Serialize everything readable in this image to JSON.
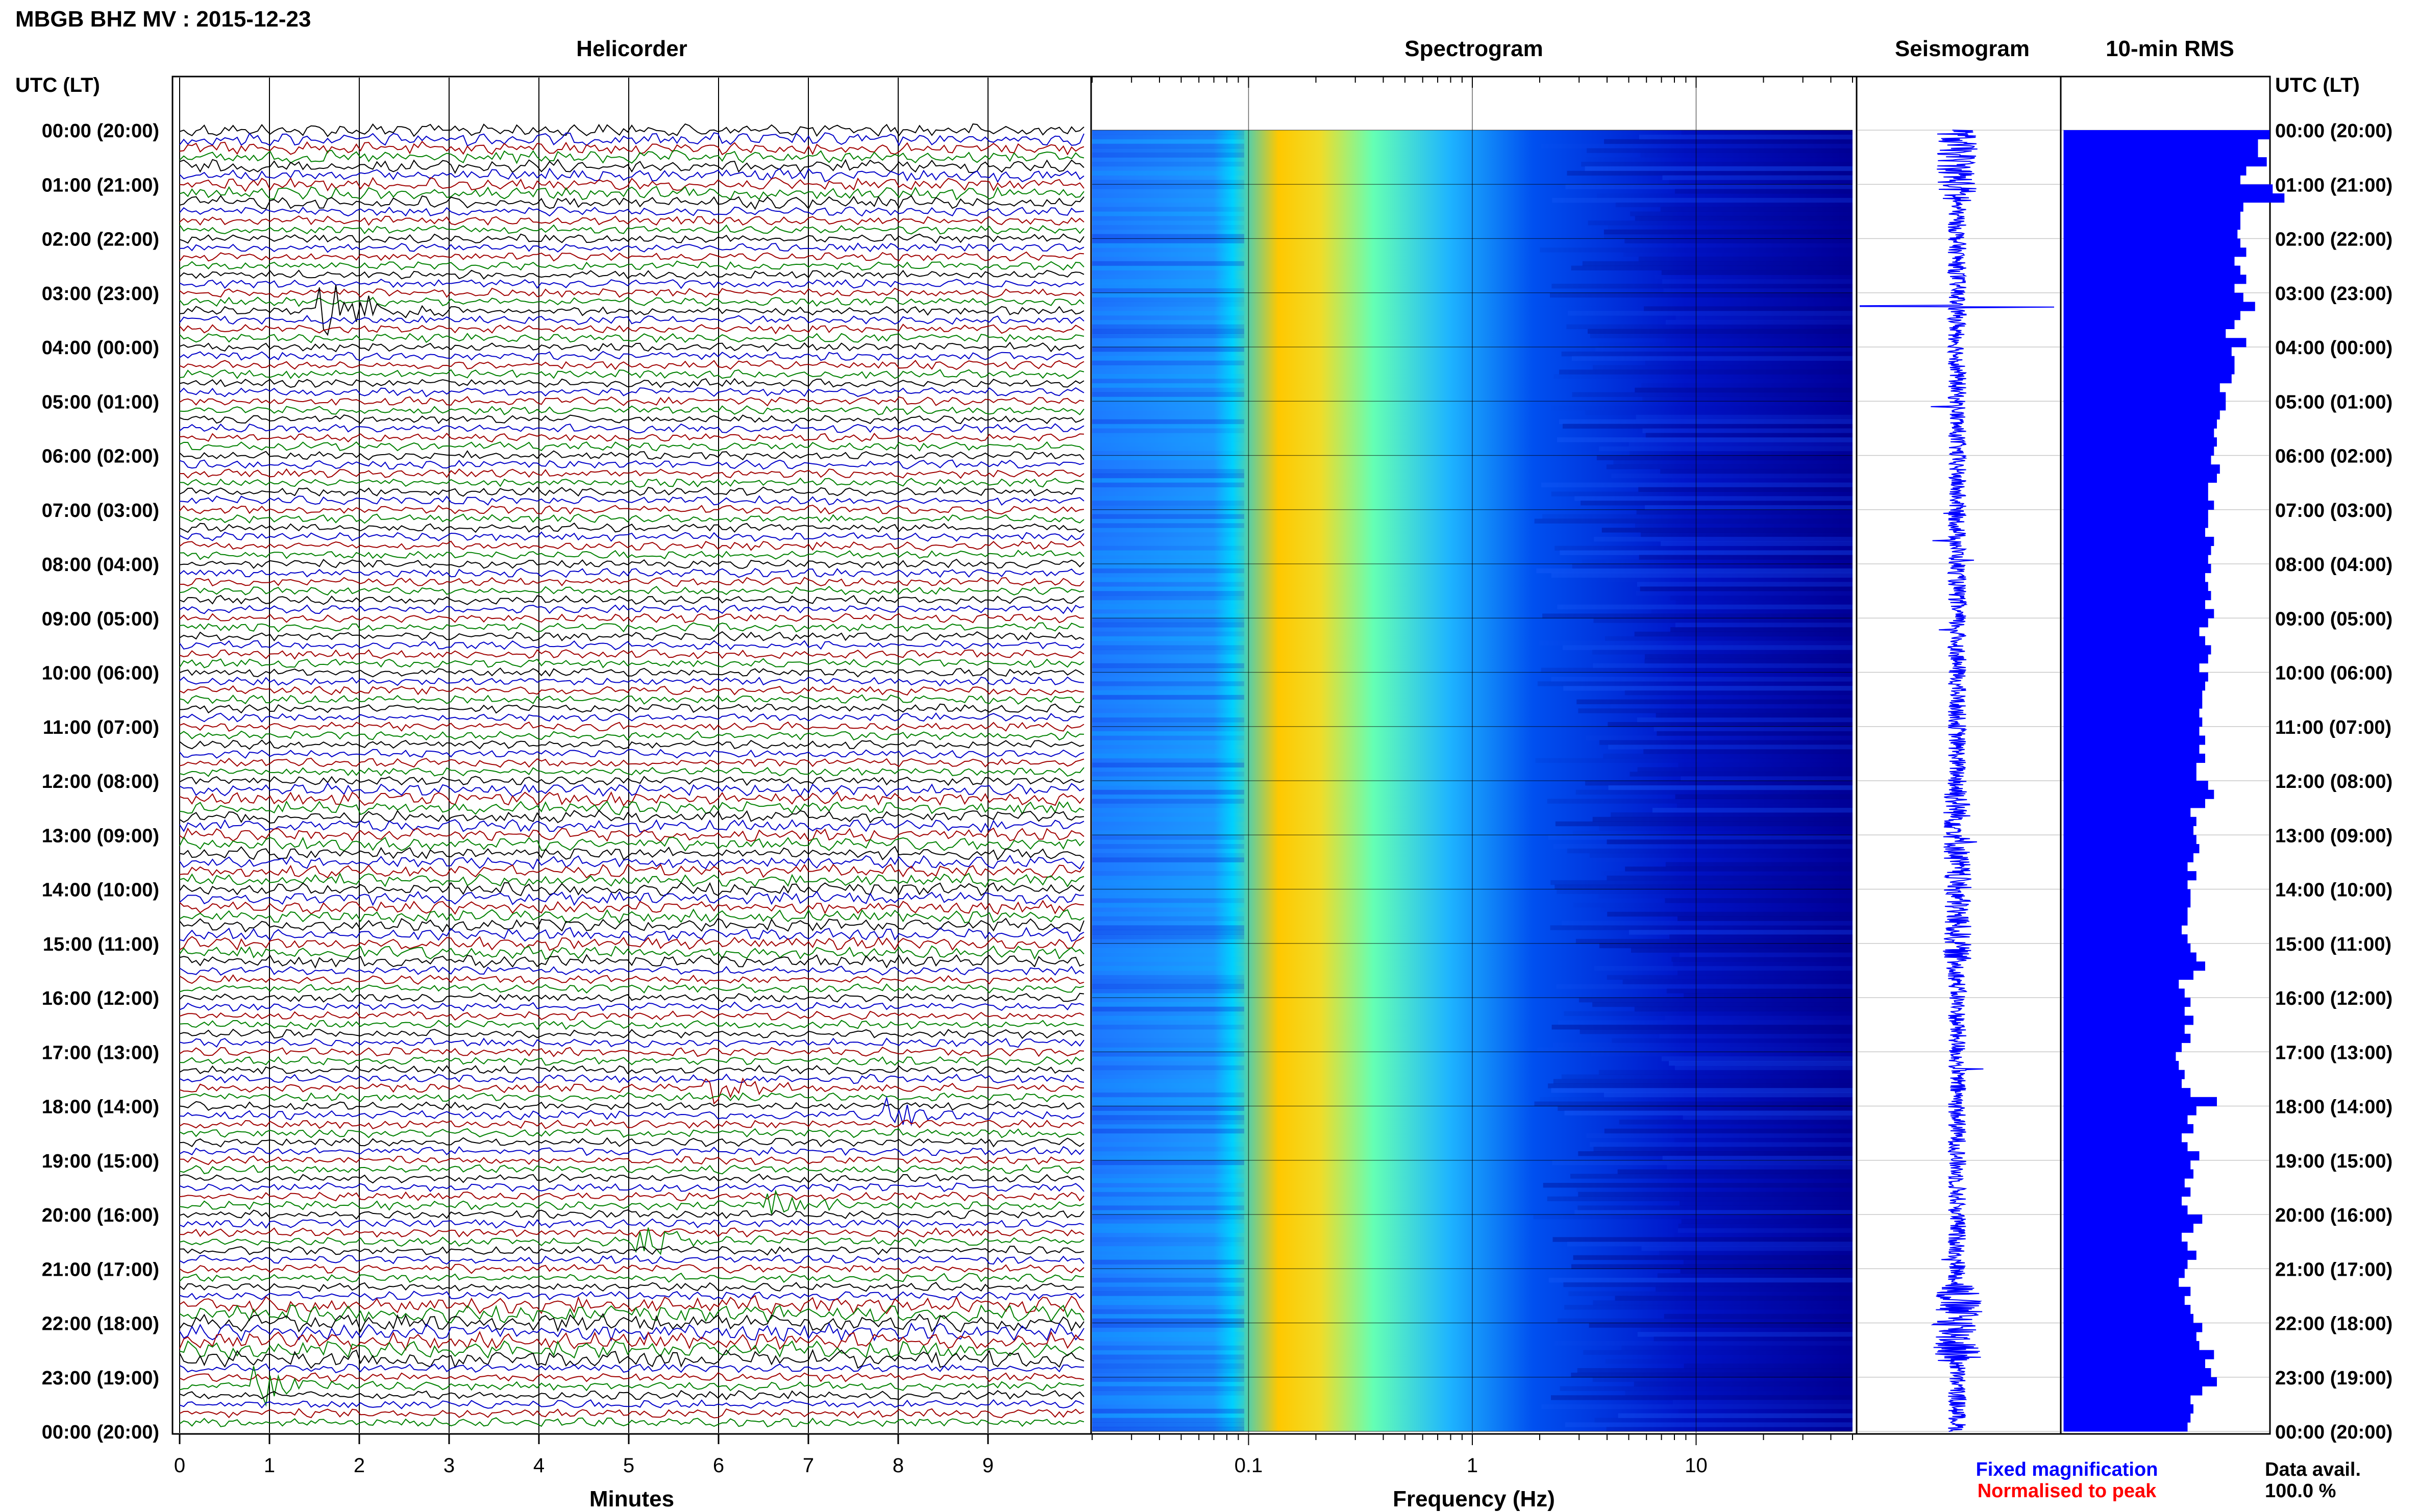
{
  "header": {
    "station_title": "MBGB BHZ MV : 2015-12-23"
  },
  "panel_titles": {
    "helicorder": "Helicorder",
    "spectrogram": "Spectrogram",
    "seismogram": "Seismogram",
    "rms": "10-min RMS"
  },
  "time_axis": {
    "left_label": "UTC (LT)",
    "right_label": "UTC (LT)",
    "hour_labels": [
      "00:00 (20:00)",
      "01:00 (21:00)",
      "02:00 (22:00)",
      "03:00 (23:00)",
      "04:00 (00:00)",
      "05:00 (01:00)",
      "06:00 (02:00)",
      "07:00 (03:00)",
      "08:00 (04:00)",
      "09:00 (05:00)",
      "10:00 (06:00)",
      "11:00 (07:00)",
      "12:00 (08:00)",
      "13:00 (09:00)",
      "14:00 (10:00)",
      "15:00 (11:00)",
      "16:00 (12:00)",
      "17:00 (13:00)",
      "18:00 (14:00)",
      "19:00 (15:00)",
      "20:00 (16:00)",
      "21:00 (17:00)",
      "22:00 (18:00)",
      "23:00 (19:00)",
      "00:00 (20:00)"
    ]
  },
  "legend": {
    "fixed_magnification": "Fixed magnification",
    "normalised_to_peak": "Normalised to peak",
    "fixed_color": "#0000ff",
    "normalised_color": "#ff0000",
    "data_avail_label": "Data avail.",
    "data_avail_value": "100.0 %"
  },
  "chart_data": [
    {
      "type": "line",
      "name": "helicorder",
      "xlabel": "Minutes",
      "xticks": [
        "0",
        "1",
        "2",
        "3",
        "4",
        "5",
        "6",
        "7",
        "8",
        "9"
      ],
      "xlim": [
        0,
        10
      ],
      "trace_colors": [
        "#000000",
        "#0000c8",
        "#a00000",
        "#008000"
      ],
      "events": [
        {
          "hour": 3.25,
          "minute": 1.5,
          "amplitude": 3.5
        },
        {
          "hour": 23.2,
          "minute": 0.8,
          "amplitude": 2.0
        },
        {
          "hour": 20.5,
          "minute": 5.0,
          "amplitude": 2.0
        },
        {
          "hour": 19.9,
          "minute": 6.4,
          "amplitude": 1.8
        },
        {
          "hour": 17.6,
          "minute": 5.8,
          "amplitude": 1.6
        },
        {
          "hour": 18.1,
          "minute": 7.8,
          "amplitude": 1.6
        }
      ]
    },
    {
      "type": "heatmap",
      "name": "spectrogram",
      "xlabel": "Frequency (Hz)",
      "xscale": "log",
      "xticks": [
        "0.1",
        "1",
        "10"
      ],
      "xlim": [
        0.02,
        50
      ],
      "colormap": [
        "#00008c",
        "#0000ff",
        "#0064ff",
        "#00c8ff",
        "#64ffc8",
        "#ffff00",
        "#ff9600",
        "#dc0000"
      ]
    },
    {
      "type": "line",
      "name": "seismogram",
      "color": "#0000ff"
    },
    {
      "type": "bar",
      "name": "10-min RMS",
      "orientation": "horizontal",
      "color": "#0000ff",
      "values": [
        0.7,
        0.66,
        0.66,
        0.69,
        0.62,
        0.6,
        0.71,
        0.75,
        0.61,
        0.6,
        0.6,
        0.59,
        0.6,
        0.62,
        0.58,
        0.6,
        0.62,
        0.58,
        0.61,
        0.65,
        0.6,
        0.58,
        0.55,
        0.62,
        0.57,
        0.58,
        0.58,
        0.57,
        0.53,
        0.55,
        0.55,
        0.53,
        0.52,
        0.51,
        0.52,
        0.51,
        0.5,
        0.53,
        0.52,
        0.49,
        0.49,
        0.51,
        0.49,
        0.49,
        0.48,
        0.51,
        0.5,
        0.49,
        0.5,
        0.48,
        0.49,
        0.5,
        0.48,
        0.51,
        0.49,
        0.46,
        0.48,
        0.5,
        0.49,
        0.46,
        0.49,
        0.48,
        0.47,
        0.47,
        0.46,
        0.47,
        0.46,
        0.48,
        0.46,
        0.48,
        0.45,
        0.45,
        0.49,
        0.51,
        0.48,
        0.43,
        0.45,
        0.44,
        0.45,
        0.46,
        0.44,
        0.42,
        0.45,
        0.42,
        0.43,
        0.43,
        0.42,
        0.42,
        0.4,
        0.42,
        0.43,
        0.45,
        0.48,
        0.44,
        0.39,
        0.41,
        0.43,
        0.41,
        0.44,
        0.41,
        0.43,
        0.4,
        0.38,
        0.39,
        0.41,
        0.4,
        0.43,
        0.52,
        0.45,
        0.42,
        0.44,
        0.4,
        0.42,
        0.46,
        0.43,
        0.44,
        0.41,
        0.43,
        0.4,
        0.42,
        0.47,
        0.44,
        0.4,
        0.42,
        0.45,
        0.42,
        0.41,
        0.39,
        0.43,
        0.41,
        0.43,
        0.44,
        0.47,
        0.45,
        0.46,
        0.51,
        0.48,
        0.5,
        0.52,
        0.47,
        0.43,
        0.44,
        0.43,
        0.42
      ]
    }
  ]
}
